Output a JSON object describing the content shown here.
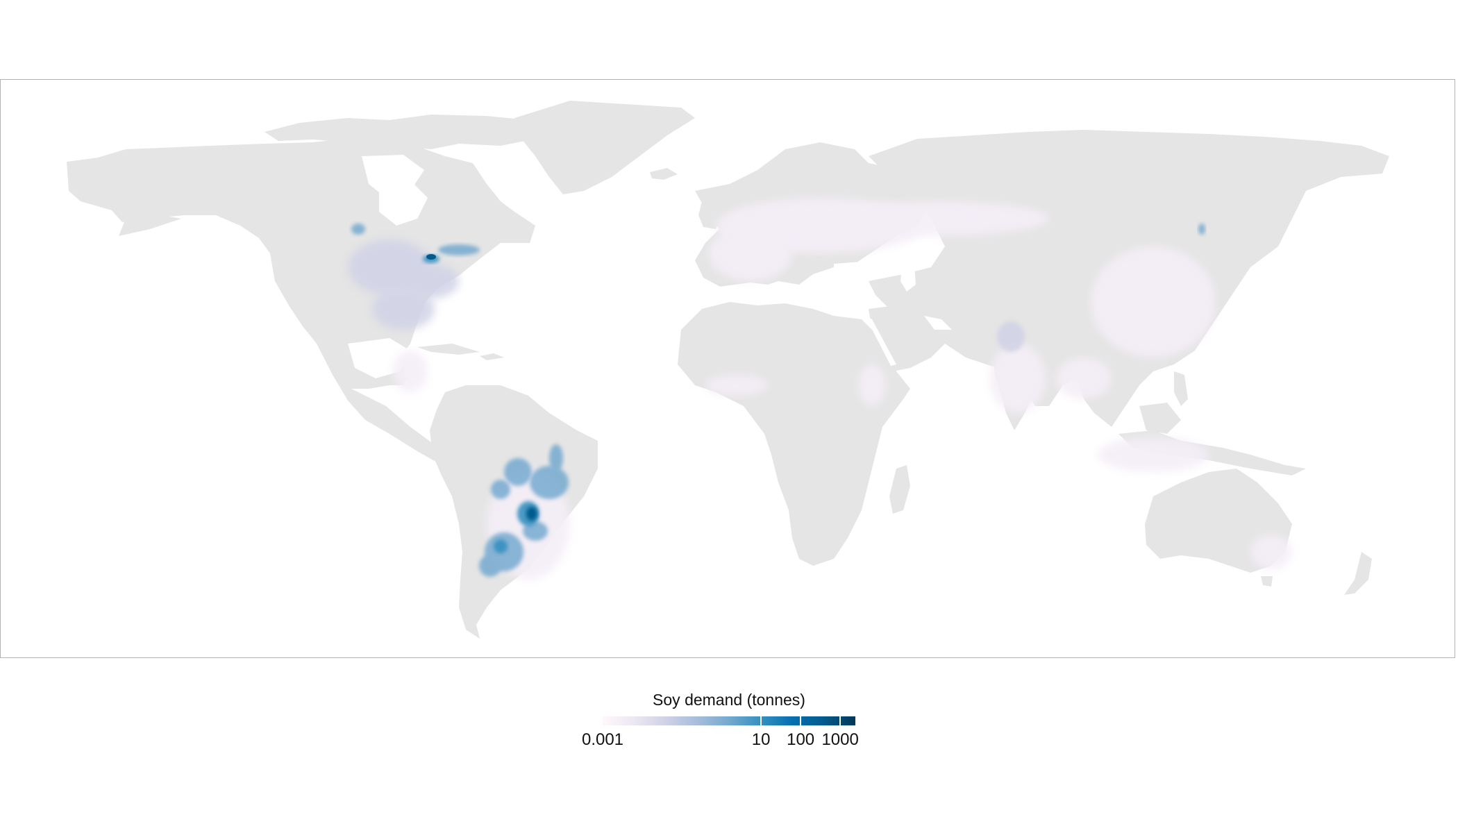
{
  "map": {
    "type": "choropleth-raster",
    "projection": "equirectangular",
    "land_color": "#e5e5e5",
    "ocean_color": "#ffffff",
    "border_color": "#b3b3b3",
    "regions_with_data": [
      {
        "region": "US Midwest",
        "level": "low"
      },
      {
        "region": "Great Lakes / Ontario",
        "level": "very high"
      },
      {
        "region": "Brazil (Mato Grosso, Goias, Parana)",
        "level": "high"
      },
      {
        "region": "Argentina (Pampas)",
        "level": "high"
      },
      {
        "region": "Northeast China",
        "level": "medium"
      },
      {
        "region": "Europe / Russia",
        "level": "very low"
      },
      {
        "region": "India",
        "level": "very low"
      },
      {
        "region": "China",
        "level": "very low"
      }
    ]
  },
  "legend": {
    "title": "Soy demand (tonnes)",
    "scale": "log",
    "ticks": [
      {
        "label": "0.001",
        "value": 0.001
      },
      {
        "label": "10",
        "value": 10
      },
      {
        "label": "100",
        "value": 100
      },
      {
        "label": "1000",
        "value": 1000
      }
    ],
    "colors": [
      "#fff7fb",
      "#ece7f2",
      "#d0d1e6",
      "#a6bddb",
      "#74a9cf",
      "#3690c0",
      "#0570b0",
      "#045a8d",
      "#023858"
    ]
  }
}
